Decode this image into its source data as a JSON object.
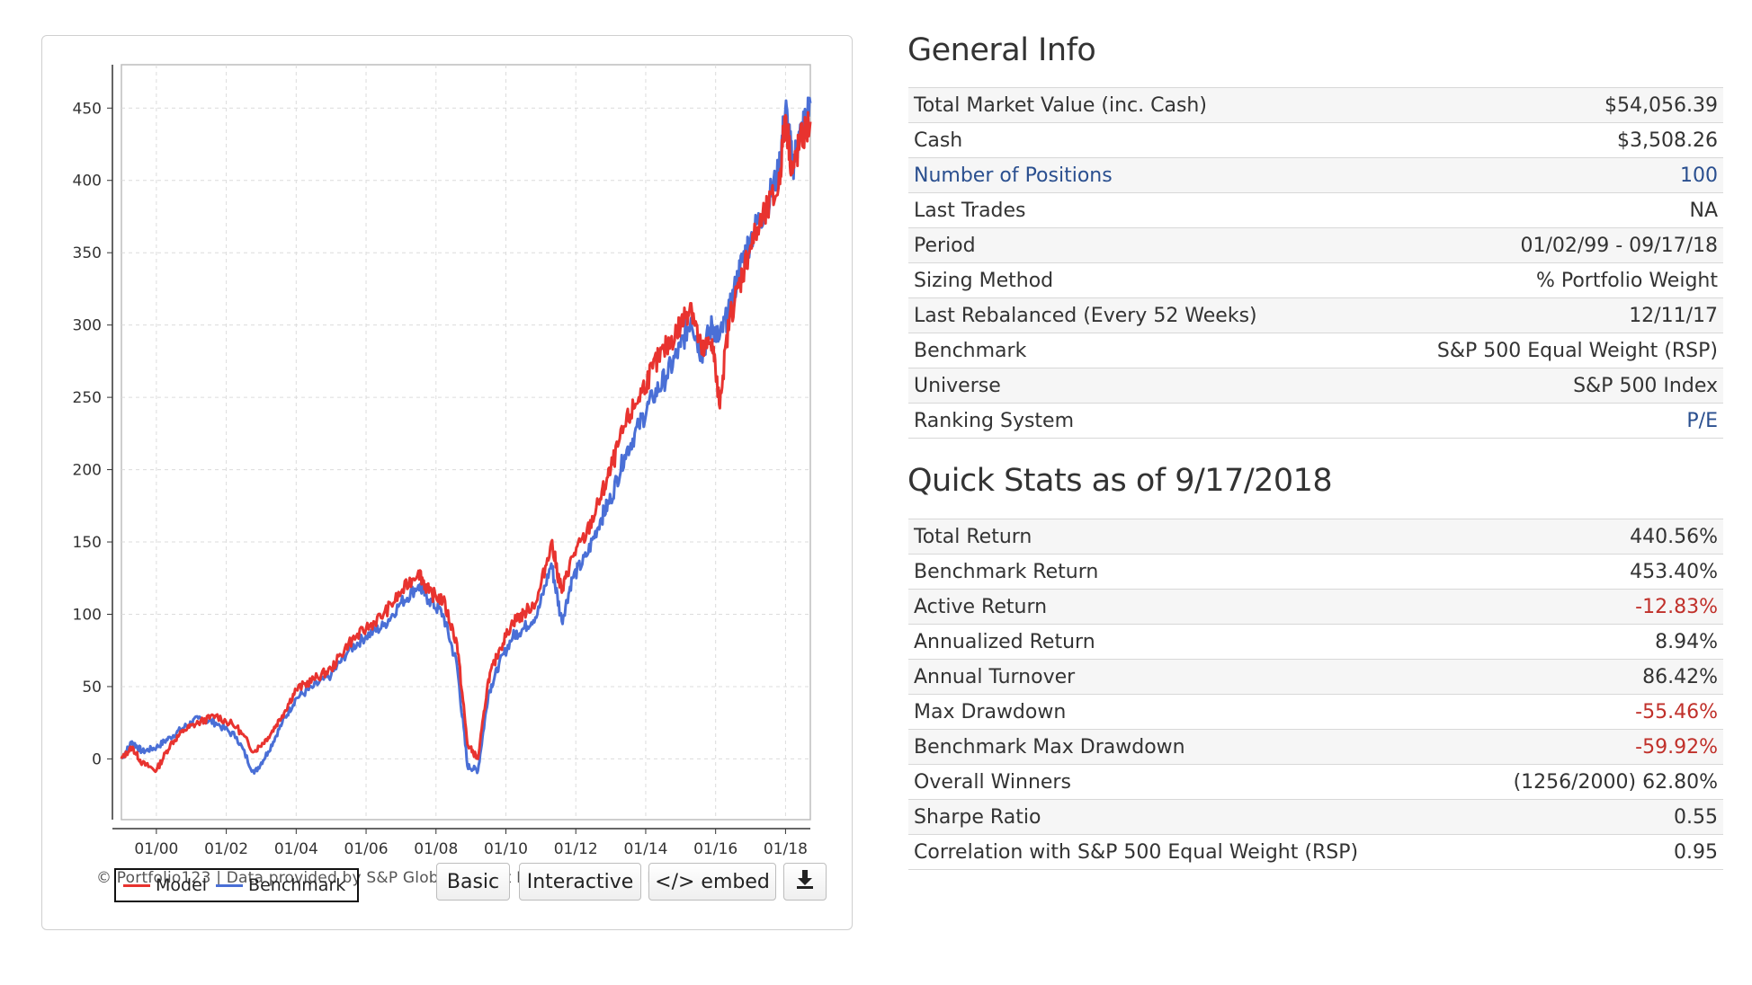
{
  "chart_panel": {
    "credit": "© Portfolio123 | Data provided by S&P Global Market Intelligence and ICE Data, LLP",
    "legend": {
      "model_label": "Model",
      "benchmark_label": "Benchmark"
    },
    "buttons": {
      "basic": "Basic",
      "interactive": "Interactive",
      "embed": "</> embed",
      "download_icon": "download-icon"
    }
  },
  "chart_data": {
    "type": "line",
    "x_tick_labels": [
      "01/00",
      "01/02",
      "01/04",
      "01/06",
      "01/08",
      "01/10",
      "01/12",
      "01/14",
      "01/16",
      "01/18"
    ],
    "y_ticks": [
      0,
      50,
      100,
      150,
      200,
      250,
      300,
      350,
      400,
      450
    ],
    "ylim": [
      -42,
      480
    ],
    "xlim": [
      1999.0,
      2018.71
    ],
    "grid": true,
    "legend_position": "bottom-left",
    "colors": {
      "model": "#e8332f",
      "benchmark": "#4a6fd6"
    },
    "series": [
      {
        "name": "Model",
        "x": [
          1999.0,
          1999.3,
          1999.6,
          2000.0,
          2000.4,
          2000.8,
          2001.2,
          2001.7,
          2002.3,
          2002.8,
          2003.2,
          2003.6,
          2004.0,
          2004.5,
          2005.0,
          2005.5,
          2006.0,
          2006.5,
          2007.0,
          2007.5,
          2007.8,
          2008.2,
          2008.6,
          2008.9,
          2009.2,
          2009.5,
          2009.8,
          2010.2,
          2010.5,
          2010.9,
          2011.3,
          2011.6,
          2011.9,
          2012.3,
          2012.7,
          2013.0,
          2013.4,
          2013.8,
          2014.2,
          2014.6,
          2015.0,
          2015.3,
          2015.6,
          2015.9,
          2016.1,
          2016.4,
          2016.7,
          2017.0,
          2017.4,
          2017.8,
          2018.0,
          2018.2,
          2018.4,
          2018.71
        ],
        "y": [
          0,
          8,
          -3,
          -8,
          10,
          20,
          25,
          30,
          22,
          5,
          15,
          30,
          48,
          55,
          62,
          80,
          90,
          100,
          115,
          130,
          115,
          110,
          80,
          10,
          0,
          55,
          75,
          95,
          100,
          110,
          150,
          115,
          140,
          155,
          180,
          200,
          230,
          250,
          270,
          285,
          300,
          315,
          280,
          290,
          245,
          305,
          330,
          355,
          375,
          395,
          445,
          405,
          425,
          440.56
        ]
      },
      {
        "name": "Benchmark",
        "x": [
          1999.0,
          1999.3,
          1999.6,
          2000.0,
          2000.4,
          2000.8,
          2001.2,
          2001.7,
          2002.3,
          2002.8,
          2003.2,
          2003.6,
          2004.0,
          2004.5,
          2005.0,
          2005.5,
          2006.0,
          2006.5,
          2007.0,
          2007.5,
          2007.8,
          2008.2,
          2008.6,
          2008.9,
          2009.2,
          2009.5,
          2009.8,
          2010.2,
          2010.5,
          2010.9,
          2011.3,
          2011.6,
          2011.9,
          2012.3,
          2012.7,
          2013.0,
          2013.4,
          2013.8,
          2014.2,
          2014.6,
          2015.0,
          2015.3,
          2015.6,
          2015.9,
          2016.1,
          2016.4,
          2016.7,
          2017.0,
          2017.4,
          2017.8,
          2018.0,
          2018.2,
          2018.4,
          2018.71
        ],
        "y": [
          0,
          12,
          5,
          8,
          15,
          22,
          28,
          25,
          15,
          -10,
          5,
          25,
          42,
          50,
          58,
          75,
          85,
          92,
          108,
          120,
          110,
          100,
          65,
          -5,
          -8,
          45,
          65,
          85,
          90,
          100,
          135,
          95,
          125,
          140,
          165,
          180,
          210,
          230,
          250,
          265,
          285,
          305,
          280,
          300,
          290,
          310,
          340,
          360,
          380,
          405,
          450,
          410,
          430,
          453.4
        ]
      }
    ]
  },
  "general_info": {
    "title": "General Info",
    "rows": [
      {
        "label": "Total Market Value (inc. Cash)",
        "value": "$54,056.39"
      },
      {
        "label": "Cash",
        "value": "$3,508.26"
      },
      {
        "label": "Number of Positions",
        "value": "100"
      },
      {
        "label": "Last Trades",
        "value": "NA"
      },
      {
        "label": "Period",
        "value": "01/02/99 - 09/17/18"
      },
      {
        "label": "Sizing Method",
        "value": "% Portfolio Weight"
      },
      {
        "label": "Last Rebalanced (Every 52 Weeks)",
        "value": "12/11/17"
      },
      {
        "label": "Benchmark",
        "value": "S&P 500 Equal Weight (RSP)"
      },
      {
        "label": "Universe",
        "value": "S&P 500 Index"
      },
      {
        "label": "Ranking System",
        "value": "P/E"
      }
    ]
  },
  "quick_stats": {
    "title": "Quick Stats as of 9/17/2018",
    "rows": [
      {
        "label": "Total Return",
        "value": "440.56%"
      },
      {
        "label": "Benchmark Return",
        "value": "453.40%"
      },
      {
        "label": "Active Return",
        "value": "-12.83%"
      },
      {
        "label": "Annualized Return",
        "value": "8.94%"
      },
      {
        "label": "Annual Turnover",
        "value": "86.42%"
      },
      {
        "label": "Max Drawdown",
        "value": "-55.46%"
      },
      {
        "label": "Benchmark Max Drawdown",
        "value": "-59.92%"
      },
      {
        "label": "Overall Winners",
        "value": "(1256/2000) 62.80%"
      },
      {
        "label": "Sharpe Ratio",
        "value": "0.55"
      },
      {
        "label": "Correlation with S&P 500 Equal Weight (RSP)",
        "value": "0.95"
      }
    ]
  }
}
